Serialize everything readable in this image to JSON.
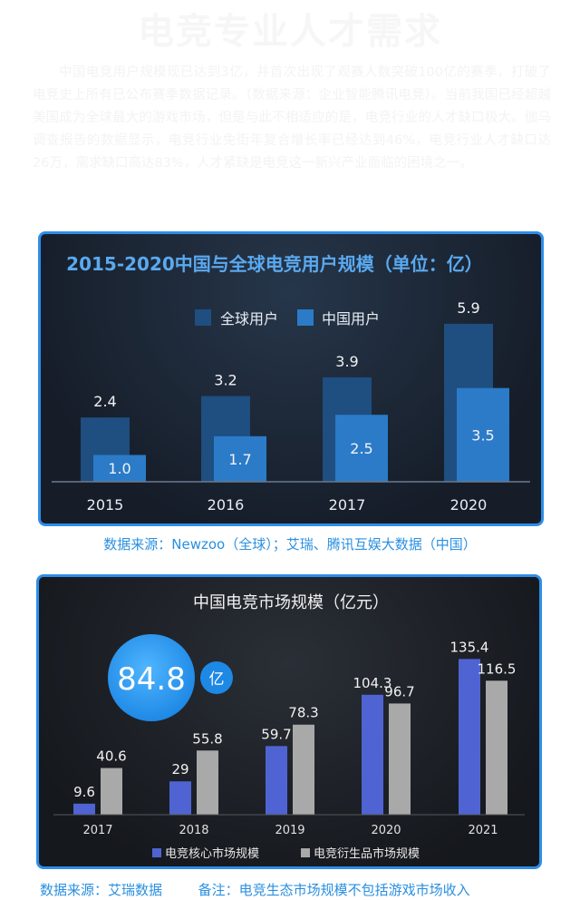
{
  "header": {
    "title": "电竞专业人才需求",
    "intro": "中国电竞用户规模现已达到3亿，并首次出现了观赛人数突破100亿的赛季，打破了电竞史上所有已公布赛季数据记录。（数据来源：企业智能腾讯电竞）。当前我国已经超越美国成为全球最大的游戏市场，但是与此不相适应的是，电竞行业的人才缺口极大。伽马调查报告的数据显示，电竞行业免街年复合增长率已经达到46%，电竞行业人才缺口达26万，需求缺口高达83%，人才紧缺是电竞这一新兴产业面临的困境之一。"
  },
  "chart1": {
    "caption": "数据来源：Newzoo（全球）；艾瑞、腾讯互娱大数据（中国）"
  },
  "chart2": {
    "caption": "数据来源：艾瑞数据",
    "note": "备注：电竞生态市场规模不包括游戏市场收入",
    "highlight_value": "84.8",
    "highlight_unit": "亿"
  },
  "chart_data": [
    {
      "type": "bar",
      "title": "2015-2020中国与全球电竞用户规模（单位：亿）",
      "categories": [
        "2015",
        "2016",
        "2017",
        "2020"
      ],
      "series": [
        {
          "name": "全球用户",
          "values": [
            2.4,
            3.2,
            3.9,
            5.9
          ],
          "labels": [
            "2.4",
            "3.2",
            "3.9",
            "5.9"
          ],
          "color": "#1f4e80"
        },
        {
          "name": "中国用户",
          "values": [
            1.0,
            1.7,
            2.5,
            3.5
          ],
          "labels": [
            "1.0",
            "1.7",
            "2.5",
            "3.5"
          ],
          "color": "#2b7bc8"
        }
      ],
      "ylim": [
        0,
        6.2
      ],
      "grid": false,
      "legend": "top"
    },
    {
      "type": "bar",
      "title": "中国电竞市场规模（亿元）",
      "categories": [
        "2017",
        "2018",
        "2019",
        "2020",
        "2021"
      ],
      "series": [
        {
          "name": "电竞核心市场规模",
          "values": [
            9.6,
            29,
            59.7,
            104.3,
            135.4
          ],
          "labels": [
            "9.6",
            "29",
            "59.7",
            "104.3",
            "135.4"
          ],
          "color": "#4f64d2"
        },
        {
          "name": "电竞衍生品市场规模",
          "values": [
            40.6,
            55.8,
            78.3,
            96.7,
            116.5
          ],
          "labels": [
            "40.6",
            "55.8",
            "78.3",
            "96.7",
            "116.5"
          ],
          "color": "#a9a9a9"
        }
      ],
      "ylim": [
        0,
        142
      ],
      "grid": false,
      "legend": "bottom"
    }
  ]
}
